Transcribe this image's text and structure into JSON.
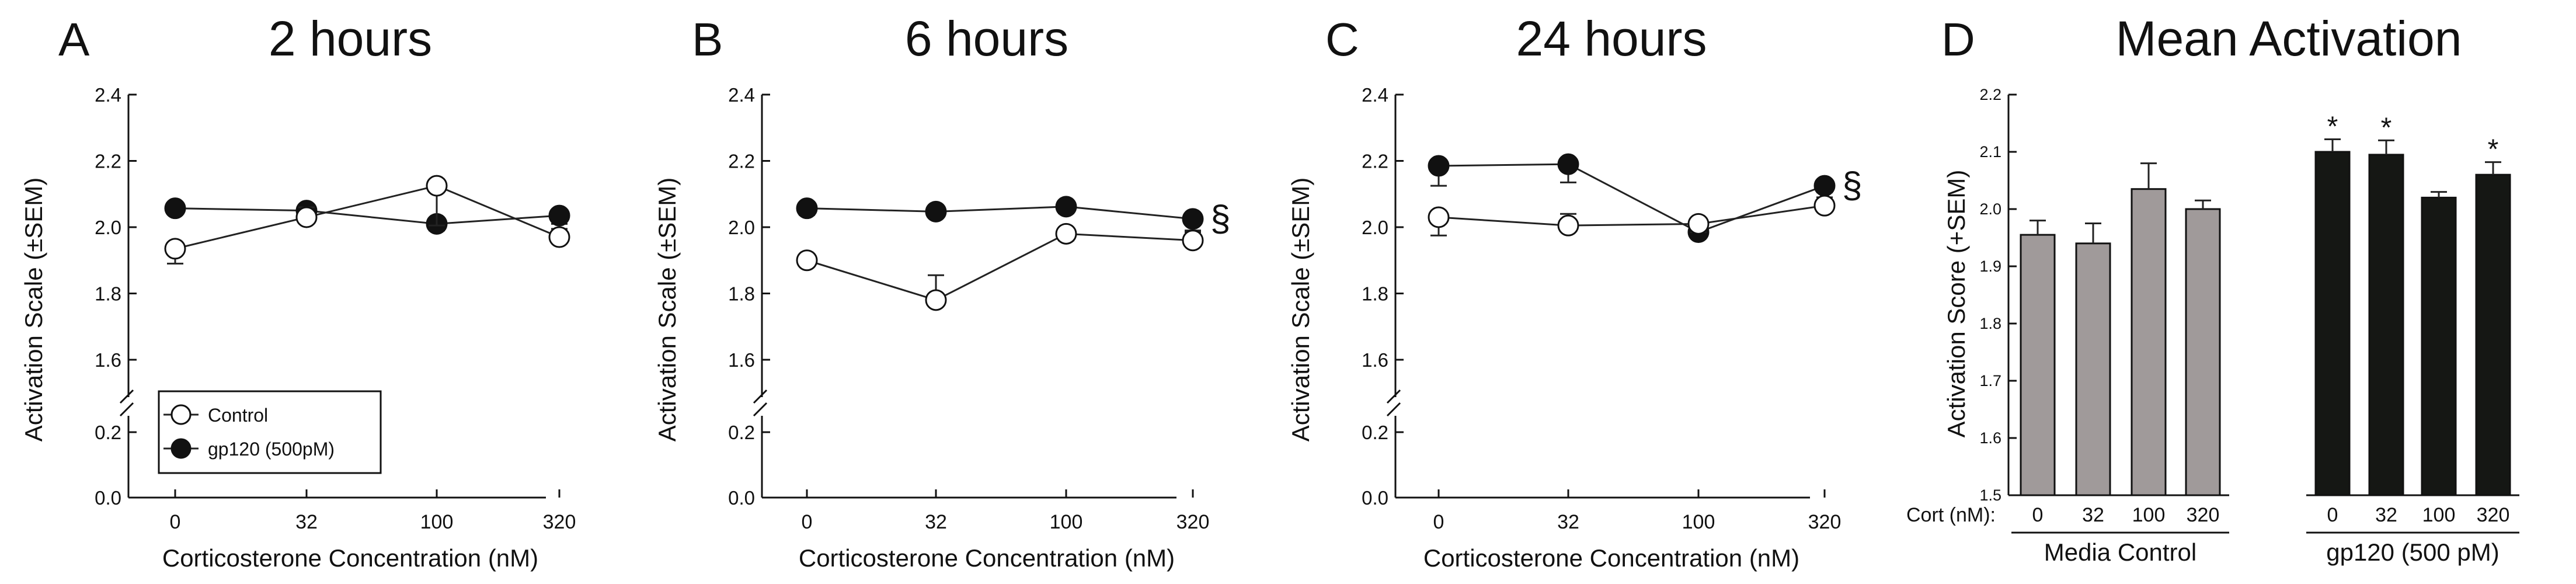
{
  "chart_data": [
    {
      "type": "line",
      "panel": "A",
      "title": "2 hours",
      "xlabel": "Corticosterone Concentration (nM)",
      "ylabel": "Activation Scale (±SEM)",
      "categories": [
        "0",
        "32",
        "100",
        "320"
      ],
      "ylim": [
        0,
        2.4
      ],
      "axis_break": [
        0.2,
        1.6
      ],
      "yticks": [
        "0.0",
        "0.2",
        "1.6",
        "1.8",
        "2.0",
        "2.2",
        "2.4"
      ],
      "legend": [
        "Control",
        "gp120 (500pM)"
      ],
      "series": [
        {
          "name": "Control",
          "marker": "open-circle",
          "values": [
            1.935,
            2.03,
            2.125,
            1.97
          ],
          "sem": [
            0.045,
            0.03,
            0.12,
            0.025
          ]
        },
        {
          "name": "gp120 (500pM)",
          "marker": "filled-circle",
          "values": [
            2.057,
            2.05,
            2.01,
            2.035
          ],
          "sem": [
            0.012,
            0.03,
            0.02,
            0.025
          ]
        }
      ],
      "annotations": []
    },
    {
      "type": "line",
      "panel": "B",
      "title": "6 hours",
      "xlabel": "Corticosterone Concentration (nM)",
      "ylabel": "Activation Scale (±SEM)",
      "categories": [
        "0",
        "32",
        "100",
        "320"
      ],
      "ylim": [
        0,
        2.4
      ],
      "axis_break": [
        0.2,
        1.6
      ],
      "yticks": [
        "0.0",
        "0.2",
        "1.6",
        "1.8",
        "2.0",
        "2.2",
        "2.4"
      ],
      "series": [
        {
          "name": "Control",
          "marker": "open-circle",
          "values": [
            1.9,
            1.78,
            1.98,
            1.96
          ],
          "sem": [
            0.01,
            0.075,
            0.02,
            0.025
          ]
        },
        {
          "name": "gp120 (500pM)",
          "marker": "filled-circle",
          "values": [
            2.057,
            2.047,
            2.062,
            2.025
          ],
          "sem": [
            0.02,
            0.01,
            0.02,
            0.035
          ]
        }
      ],
      "annotations": [
        "§"
      ]
    },
    {
      "type": "line",
      "panel": "C",
      "title": "24 hours",
      "xlabel": "Corticosterone Concentration (nM)",
      "ylabel": "Activation Scale (±SEM)",
      "categories": [
        "0",
        "32",
        "100",
        "320"
      ],
      "ylim": [
        0,
        2.4
      ],
      "axis_break": [
        0.2,
        1.6
      ],
      "yticks": [
        "0.0",
        "0.2",
        "1.6",
        "1.8",
        "2.0",
        "2.2",
        "2.4"
      ],
      "series": [
        {
          "name": "Control",
          "marker": "open-circle",
          "values": [
            2.03,
            2.005,
            2.01,
            2.065
          ],
          "sem": [
            0.055,
            0.035,
            0.025,
            0.025
          ]
        },
        {
          "name": "gp120 (500pM)",
          "marker": "filled-circle",
          "values": [
            2.185,
            2.19,
            1.985,
            2.125
          ],
          "sem": [
            0.06,
            0.055,
            0.01,
            0.02
          ]
        }
      ],
      "annotations": [
        "§"
      ]
    },
    {
      "type": "bar",
      "panel": "D",
      "title": "Mean Activation",
      "ylabel": "Activation Score (+SEM)",
      "ylim": [
        1.5,
        2.2
      ],
      "yticks": [
        "1.5",
        "1.6",
        "1.7",
        "1.8",
        "1.9",
        "2.0",
        "2.1",
        "2.2"
      ],
      "cort_label": "Cort (nM):",
      "categories": [
        "0",
        "32",
        "100",
        "320"
      ],
      "groups": [
        {
          "name": "Media Control",
          "color": "#a09a9a",
          "values": [
            1.955,
            1.94,
            2.035,
            2.0
          ],
          "sem": [
            0.025,
            0.035,
            0.045,
            0.015
          ],
          "stars": [
            "",
            "",
            "",
            ""
          ]
        },
        {
          "name": "gp120 (500 pM)",
          "color": "#151714",
          "values": [
            2.1,
            2.095,
            2.02,
            2.06
          ],
          "sem": [
            0.022,
            0.025,
            0.01,
            0.022
          ],
          "stars": [
            "*",
            "*",
            "",
            "*"
          ]
        }
      ]
    }
  ]
}
